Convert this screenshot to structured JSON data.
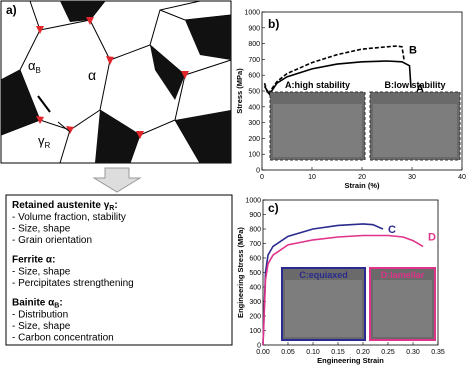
{
  "schematic": {
    "panel_label": "a)",
    "labels": [
      {
        "text": "α",
        "subscript": "B"
      },
      {
        "text": "α",
        "subscript": ""
      },
      {
        "text": "γ",
        "subscript": "R"
      }
    ]
  },
  "properties": [
    {
      "heading": "Retained austenite γ",
      "subscript": "R",
      "suffix": ":",
      "items": [
        "- Volume fraction, stability",
        "- Size, shape",
        "- Grain orientation"
      ]
    },
    {
      "heading": "Ferrite α",
      "subscript": "",
      "suffix": ":",
      "items": [
        "- Size, shape",
        "- Percipitates strengthening"
      ]
    },
    {
      "heading": "Bainite α",
      "subscript": "B",
      "suffix": ":",
      "items": [
        "- Distribution",
        "- Size, shape",
        "- Carbon concentration"
      ]
    }
  ],
  "chart_data": [
    {
      "type": "line",
      "panel_label": "b)",
      "y_label": "Stress (MPa)",
      "x_label": "Strain (%)",
      "xlim": [
        0,
        40
      ],
      "xticks": [
        0,
        10,
        20,
        30,
        40
      ],
      "ylim": [
        0,
        1000
      ],
      "yticks": [
        0,
        100,
        200,
        300,
        400,
        500,
        600,
        700,
        800,
        900,
        1000
      ],
      "insets": [
        "A:high stability",
        "B:low stability"
      ],
      "series": [
        {
          "name": "A",
          "color": "#000000",
          "line_style": "solid",
          "x": [
            0.5,
            1.5,
            3,
            5,
            10,
            15,
            20,
            25,
            28,
            29.5,
            29.8
          ],
          "values": [
            530,
            480,
            550,
            590,
            640,
            670,
            685,
            690,
            685,
            660,
            520
          ]
        },
        {
          "name": "B",
          "color": "#000000",
          "line_style": "dashed",
          "x": [
            0.5,
            1.2,
            3,
            5,
            10,
            15,
            20,
            25,
            27,
            28,
            28.4
          ],
          "values": [
            550,
            480,
            560,
            610,
            680,
            730,
            765,
            780,
            785,
            780,
            700
          ]
        }
      ]
    },
    {
      "type": "line",
      "panel_label": "c)",
      "y_label": "Engineering Stress (MPa)",
      "x_label": "Engineering Strain",
      "xlim": [
        0,
        0.35
      ],
      "xticks": [
        {
          "value": 0,
          "label": "0.00"
        },
        0.05,
        {
          "value": 0.1,
          "label": "0.10"
        },
        0.15,
        {
          "value": 0.2,
          "label": "0.20"
        },
        0.25,
        {
          "value": 0.3,
          "label": "0.30"
        },
        0.35
      ],
      "ylim": [
        0,
        1000
      ],
      "yticks": [
        0,
        100,
        200,
        300,
        400,
        500,
        600,
        700,
        800,
        900,
        1000
      ],
      "insets": [
        "C:equiaxed",
        "D:lamellar"
      ],
      "series": [
        {
          "name": "C",
          "color": "#2b2b8f",
          "line_style": "solid",
          "x": [
            0,
            0.005,
            0.01,
            0.02,
            0.05,
            0.1,
            0.15,
            0.2,
            0.22,
            0.24
          ],
          "values": [
            0,
            500,
            620,
            680,
            750,
            800,
            825,
            835,
            830,
            800
          ]
        },
        {
          "name": "D",
          "color": "#e0338a",
          "line_style": "solid",
          "x": [
            0,
            0.005,
            0.01,
            0.02,
            0.05,
            0.1,
            0.15,
            0.2,
            0.25,
            0.28,
            0.3,
            0.32
          ],
          "values": [
            0,
            450,
            560,
            620,
            690,
            725,
            745,
            755,
            755,
            745,
            720,
            680
          ]
        }
      ]
    }
  ]
}
